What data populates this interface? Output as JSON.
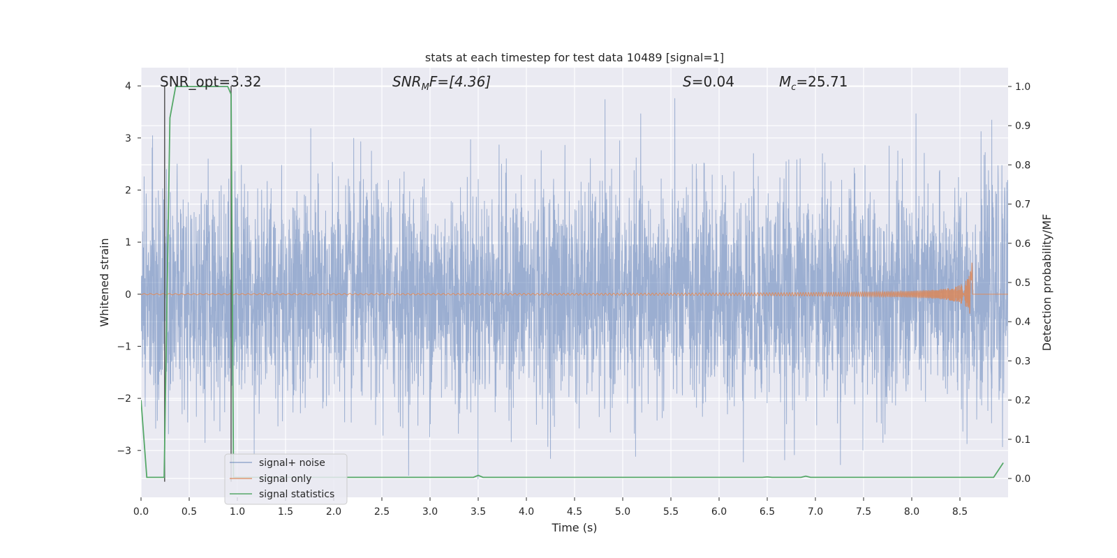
{
  "chart_data": {
    "type": "line",
    "title": "stats at each timestep for test data 10489 [signal=1]",
    "xlabel": "Time (s)",
    "ylabel_left": "Whitened strain",
    "ylabel_right": "Detection probability/MF",
    "xlim": [
      0.0,
      9.0
    ],
    "ylim_left": [
      -3.9,
      4.35
    ],
    "ylim_right": [
      -0.048,
      1.048
    ],
    "x_ticks": [
      "0.0",
      "0.5",
      "1.0",
      "1.5",
      "2.0",
      "2.5",
      "3.0",
      "3.5",
      "4.0",
      "4.5",
      "5.0",
      "5.5",
      "6.0",
      "6.5",
      "7.0",
      "7.5",
      "8.0",
      "8.5"
    ],
    "x_tick_values": [
      0.0,
      0.5,
      1.0,
      1.5,
      2.0,
      2.5,
      3.0,
      3.5,
      4.0,
      4.5,
      5.0,
      5.5,
      6.0,
      6.5,
      7.0,
      7.5,
      8.0,
      8.5
    ],
    "y_left_ticks": [
      "4",
      "3",
      "2",
      "1",
      "0",
      "−1",
      "−2",
      "−3"
    ],
    "y_left_tick_values": [
      4,
      3,
      2,
      1,
      0,
      -1,
      -2,
      -3
    ],
    "y_right_ticks": [
      "1.0",
      "0.9",
      "0.8",
      "0.7",
      "0.6",
      "0.5",
      "0.4",
      "0.3",
      "0.2",
      "0.1",
      "0.0"
    ],
    "y_right_tick_values": [
      1.0,
      0.9,
      0.8,
      0.7,
      0.6,
      0.5,
      0.4,
      0.3,
      0.2,
      0.1,
      0.0
    ],
    "annotations": {
      "snr_opt": "SNR_opt=3.32",
      "snr_mf_base": "SNR",
      "snr_mf_sub": "M",
      "snr_mf_rest": "F=[4.36]",
      "s_italic": "S",
      "s_rest": "=0.04",
      "mc_base": "M",
      "mc_sub": "c",
      "mc_rest": "=25.71"
    },
    "legend": {
      "location": "lower-left",
      "entries": [
        "signal+ noise",
        "signal only",
        "signal statistics"
      ]
    },
    "series": [
      {
        "name": "signal+ noise",
        "color": "#4c72b0",
        "description": "whitened noisy strain, dense band roughly between -3.5 and 4.0"
      },
      {
        "name": "signal only",
        "color": "#dd8452",
        "chirp_end_time": 8.63,
        "peak_amplitude": 0.73
      },
      {
        "name": "signal statistics",
        "color": "#55a868",
        "axis": "right",
        "x": [
          0.0,
          0.06,
          0.24,
          0.3,
          0.36,
          0.9,
          0.935,
          0.96,
          3.4,
          3.45,
          3.5,
          3.55,
          6.45,
          6.5,
          6.55,
          6.85,
          6.9,
          6.95,
          8.85,
          8.95
        ],
        "values": [
          0.2,
          0.003,
          0.003,
          0.92,
          1.0,
          1.0,
          0.98,
          0.003,
          0.003,
          0.003,
          0.008,
          0.003,
          0.003,
          0.004,
          0.003,
          0.003,
          0.006,
          0.003,
          0.003,
          0.04
        ]
      }
    ],
    "vertical_lines": [
      {
        "x": 0.245,
        "y_from": -3.6,
        "y_to": 4.0,
        "color": "#555555"
      },
      {
        "x": 0.935,
        "y_from": -3.6,
        "y_to": 4.0,
        "color": "#555555"
      }
    ],
    "colors": {
      "background": "#eaeaf2",
      "grid": "#ffffff"
    }
  }
}
